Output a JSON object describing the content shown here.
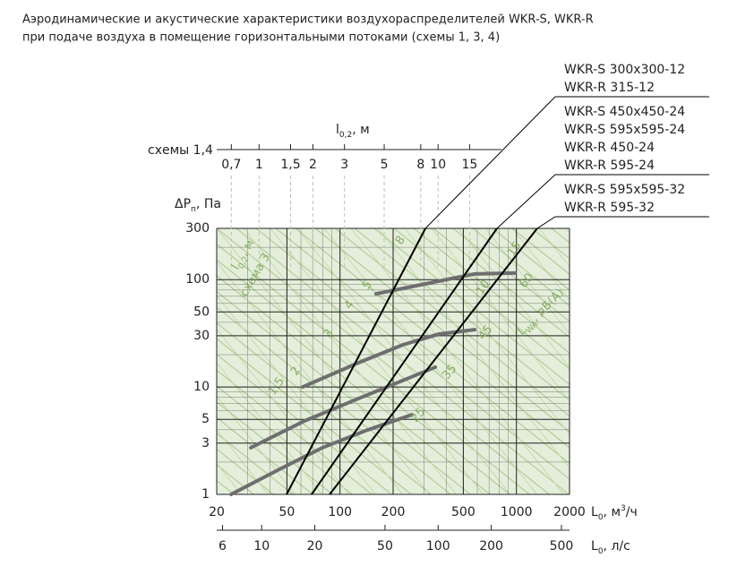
{
  "title": [
    "Аэродинамические и акустические характеристики воздухораспределителей WKR-S, WKR-R",
    "при подаче воздуха в помещение горизонтальными потоками (схемы 1, 3, 4)"
  ],
  "chart_data": {
    "type": "line",
    "xscale": "log",
    "yscale": "log",
    "xlim": [
      20,
      2000
    ],
    "ylim": [
      1,
      300
    ],
    "xticks": [
      20,
      50,
      100,
      200,
      500,
      1000,
      2000
    ],
    "yticks": [
      1,
      3,
      5,
      10,
      30,
      50,
      100,
      300
    ],
    "x_label": [
      "L",
      "0",
      ", м",
      "3",
      "/ч"
    ],
    "y_label": [
      "ΔP",
      "п",
      ", Па"
    ],
    "x2lim": [
      5.56,
      555.6
    ],
    "x2ticks": [
      6,
      10,
      20,
      50,
      100,
      200,
      500
    ],
    "x2_label": [
      "L",
      "0",
      ", л/с"
    ],
    "x3lim": [
      0.58,
      22.6
    ],
    "x3ticks": [
      {
        "value": 0.7,
        "label": "0,7"
      },
      1,
      {
        "value": 1.5,
        "label": "1,5"
      },
      2,
      3,
      5,
      8,
      10,
      15
    ],
    "x3_label": [
      "l",
      "0,2",
      ", м"
    ],
    "x3_caption": "схемы 1,4",
    "grid": true,
    "series": [
      {
        "name": [
          "WKR-S  300x300-12",
          "WKR-R  315-12"
        ],
        "color": "#000000",
        "x": [
          49.8,
          305
        ],
        "values": [
          1,
          300
        ]
      },
      {
        "name": [
          "WKR-S  450x450-24",
          "WKR-S  595x595-24",
          "WKR-R  450-24",
          "WKR-R  595-24"
        ],
        "color": "#000000",
        "x": [
          69,
          776
        ],
        "values": [
          1,
          300
        ]
      },
      {
        "name": [
          "WKR-S  595x595-32",
          "WKR-R  595-32"
        ],
        "color": "#000000",
        "x": [
          87.3,
          1312
        ],
        "values": [
          1,
          300
        ]
      }
    ],
    "curves": [
      {
        "color": "#6e6e6e",
        "x": [
          24.1,
          44.3,
          79.4,
          143,
          256
        ],
        "values": [
          1,
          1.68,
          2.72,
          3.98,
          5.52
        ]
      },
      {
        "color": "#6e6e6e",
        "x": [
          31.2,
          62.9,
          127,
          227,
          347
        ],
        "values": [
          2.72,
          4.83,
          7.8,
          11.5,
          15.3
        ]
      },
      {
        "color": "#6e6e6e",
        "x": [
          61.4,
          127,
          227,
          363,
          580
        ],
        "values": [
          10,
          16.8,
          24.7,
          31.1,
          34.2
        ]
      },
      {
        "color": "#6e6e6e",
        "x": [
          160,
          287,
          580,
          980
        ],
        "values": [
          73.8,
          89.5,
          113,
          115
        ]
      }
    ],
    "sound_levels": [
      25,
      35,
      45,
      60
    ],
    "sound_label": [
      "L",
      "WA",
      ", дБ(A)"
    ],
    "throw_labels": [
      "1,5",
      "2",
      "3",
      "4",
      "5",
      "8",
      "10",
      "15"
    ],
    "schema3_label": [
      "l",
      "0,2",
      ", м",
      "схема 3"
    ]
  }
}
